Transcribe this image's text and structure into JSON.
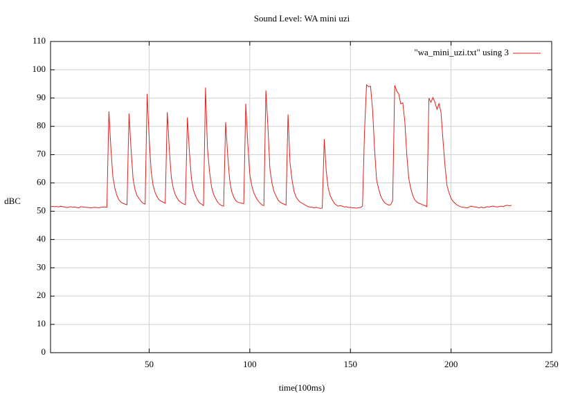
{
  "chart_data": {
    "type": "line",
    "title": "Sound Level: WA mini uzi",
    "x_label": "time(100ms)",
    "y_label": "dBC",
    "xlim": [
      1,
      250
    ],
    "xticks": [
      50,
      100,
      150,
      200,
      250
    ],
    "ylim": [
      0,
      110
    ],
    "yticks": [
      0,
      10,
      20,
      30,
      40,
      50,
      60,
      70,
      80,
      90,
      100,
      110
    ],
    "grid": true,
    "legend": "top-right",
    "x": [
      1,
      2,
      3,
      4,
      5,
      6,
      7,
      8,
      9,
      10,
      11,
      12,
      13,
      14,
      15,
      16,
      17,
      18,
      19,
      20,
      21,
      22,
      23,
      24,
      25,
      26,
      27,
      28,
      29,
      30,
      31,
      32,
      33,
      34,
      35,
      36,
      37,
      38,
      39,
      40,
      41,
      42,
      43,
      44,
      45,
      46,
      47,
      48,
      49,
      50,
      51,
      52,
      53,
      54,
      55,
      56,
      57,
      58,
      59,
      60,
      61,
      62,
      63,
      64,
      65,
      66,
      67,
      68,
      69,
      70,
      71,
      72,
      73,
      74,
      75,
      76,
      77,
      78,
      79,
      80,
      81,
      82,
      83,
      84,
      85,
      86,
      87,
      88,
      89,
      90,
      91,
      92,
      93,
      94,
      95,
      96,
      97,
      98,
      99,
      100,
      101,
      102,
      103,
      104,
      105,
      106,
      107,
      108,
      109,
      110,
      111,
      112,
      113,
      114,
      115,
      116,
      117,
      118,
      119,
      120,
      121,
      122,
      123,
      124,
      125,
      126,
      127,
      128,
      129,
      130,
      131,
      132,
      133,
      134,
      135,
      136,
      137,
      138,
      139,
      140,
      141,
      142,
      143,
      144,
      145,
      146,
      147,
      148,
      149,
      150,
      151,
      152,
      153,
      154,
      155,
      156,
      157,
      158,
      159,
      160,
      161,
      162,
      163,
      164,
      165,
      166,
      167,
      168,
      169,
      170,
      171,
      172,
      173,
      174,
      175,
      176,
      177,
      178,
      179,
      180,
      181,
      182,
      183,
      184,
      185,
      186,
      187,
      188,
      189,
      190,
      191,
      192,
      193,
      194,
      195,
      196,
      197,
      198,
      199,
      200,
      201,
      202,
      203,
      204,
      205,
      206,
      207,
      208,
      209,
      210,
      211,
      212,
      213,
      214,
      215,
      216,
      217,
      218,
      219,
      220,
      221,
      222,
      223,
      224,
      225,
      226,
      227,
      228,
      229,
      230
    ],
    "series": [
      {
        "name": "\"wa_mini_uzi.txt\" using 3",
        "color": "#e0201b",
        "values": [
          51.6,
          51.7,
          51.6,
          51.7,
          51.5,
          51.8,
          51.6,
          51.5,
          51.3,
          51.4,
          51.6,
          51.4,
          51.5,
          51.3,
          51.2,
          51.6,
          51.5,
          51.4,
          51.4,
          51.3,
          51.2,
          51.3,
          51.4,
          51.3,
          51.2,
          51.4,
          51.5,
          51.5,
          51.4,
          85.3,
          72,
          62,
          58,
          55.5,
          54,
          53.2,
          52.8,
          52.5,
          52.3,
          84.5,
          72,
          61.5,
          57.5,
          55.5,
          54.5,
          53.5,
          52.8,
          52.5,
          91.5,
          76,
          64,
          59,
          56.5,
          55,
          54,
          53.5,
          53.2,
          52.8,
          85,
          72,
          62,
          58,
          55.8,
          54.5,
          53.5,
          53,
          52.6,
          52.3,
          83.2,
          71,
          61.5,
          57.5,
          55.5,
          54,
          53,
          52.5,
          52,
          93.7,
          72,
          64,
          58.5,
          56,
          54.5,
          53.2,
          52.5,
          52,
          51.8,
          81.5,
          70,
          61,
          57,
          55,
          53.8,
          53.2,
          53,
          52.8,
          52.7,
          88,
          74,
          63,
          59,
          56.5,
          55,
          53.8,
          53,
          52.2,
          52,
          92.7,
          80,
          65,
          60,
          57,
          55.5,
          54,
          53.2,
          52.8,
          52.5,
          52.2,
          84.2,
          67,
          61,
          57,
          55,
          54,
          53.2,
          52.8,
          52.4,
          52,
          51.6,
          51.5,
          51.4,
          51.2,
          51.4,
          51.2,
          51,
          51.1,
          75.5,
          64,
          58,
          55.5,
          54,
          52.8,
          52.2,
          51.8,
          52,
          51.8,
          51.5,
          51.6,
          51.3,
          51.4,
          51.2,
          51.2,
          51.1,
          51.2,
          51.3,
          51.8,
          78,
          94.7,
          94,
          94.2,
          86,
          72,
          61,
          58,
          55.5,
          54,
          53,
          52.5,
          52.2,
          52.3,
          53.8,
          94.5,
          92.5,
          91.5,
          88,
          88.3,
          82,
          70,
          61.5,
          58,
          55.5,
          54,
          53.2,
          52.8,
          52.6,
          52.2,
          52,
          51.6,
          90,
          88.5,
          90.2,
          88.5,
          86,
          88,
          85,
          75,
          66,
          59,
          56.5,
          54.5,
          53.5,
          52.8,
          52.2,
          51.8,
          51.5,
          51.4,
          51.3,
          51.2,
          51.5,
          51.8,
          51.6,
          51.5,
          51.4,
          51.2,
          51.5,
          51.2,
          51.4,
          51.6,
          51.5,
          51.7,
          51.8,
          51.6,
          51.5,
          51.7,
          51.8,
          51.6,
          52,
          52.1,
          51.9,
          52.1
        ]
      }
    ]
  }
}
